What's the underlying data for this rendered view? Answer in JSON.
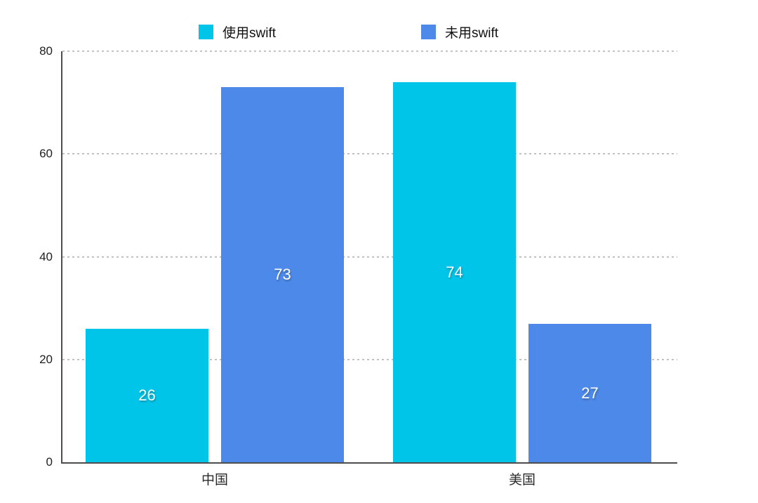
{
  "chart_data": {
    "type": "bar",
    "title": "",
    "xlabel": "",
    "ylabel": "",
    "categories": [
      "中国",
      "美国"
    ],
    "series": [
      {
        "name": "使用swift",
        "color": "#00C4E8",
        "values": [
          26,
          74
        ]
      },
      {
        "name": "未用swift",
        "color": "#4C89E8",
        "values": [
          73,
          27
        ]
      }
    ],
    "ylim": [
      0,
      80
    ],
    "yticks": [
      0,
      20,
      40,
      60,
      80
    ],
    "grid": "horizontal-dashed",
    "legend_position": "top-center",
    "value_labels": "white numbers centered inside bars",
    "colors": {
      "axis": "#4d4d4d",
      "gridline": "#b3b3b3",
      "background": "#ffffff",
      "value_label_text": "#ffffff"
    }
  }
}
